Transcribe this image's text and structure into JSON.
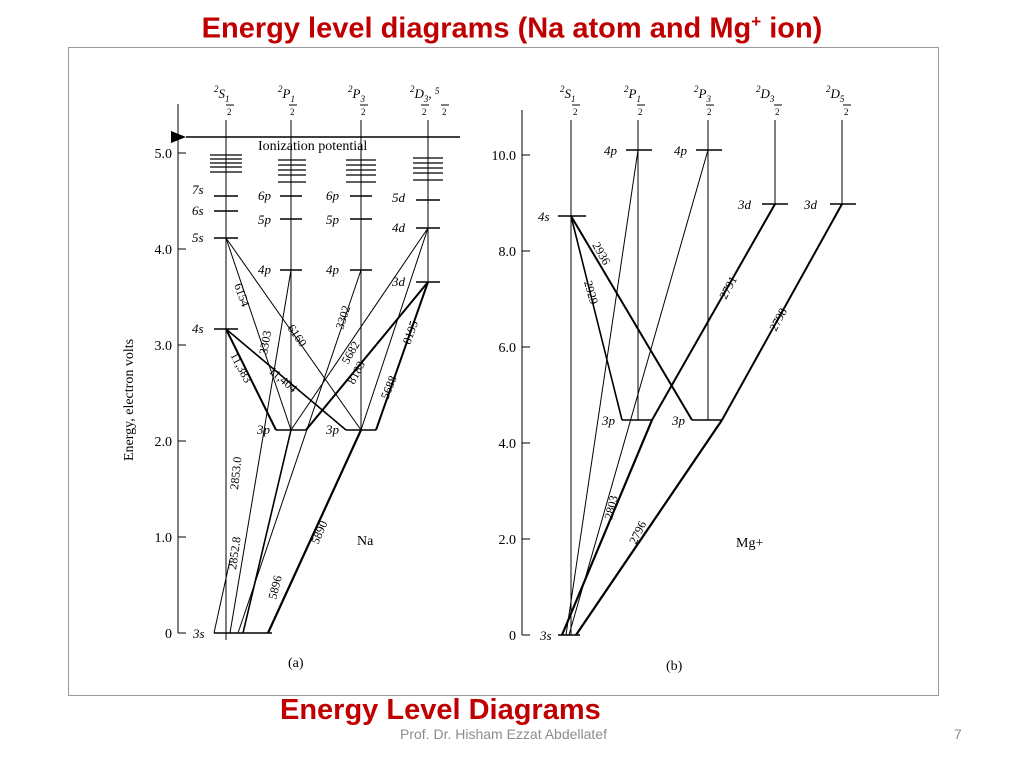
{
  "title": {
    "main": "Energy level diagrams (Na atom and Mg",
    "sup": "+",
    "tail": " ion)"
  },
  "caption": "Energy Level Diagrams",
  "footer": {
    "author": "Prof. Dr. Hisham Ezzat Abdellatef",
    "page": "7"
  },
  "na": {
    "label": "Na",
    "panel": "(a)",
    "axis_title": "Energy, electron volts",
    "ticks": [
      "0",
      "1.0",
      "2.0",
      "3.0",
      "4.0",
      "5.0"
    ],
    "ionization_label": "Ionization potential",
    "columns": [
      "2S1/2",
      "2P1/2",
      "2P3/2",
      "2D3/2,5/2"
    ],
    "levels": [
      {
        "label": "3s",
        "ev": 0.0
      },
      {
        "label": "4s",
        "ev": 3.19
      },
      {
        "label": "5s",
        "ev": 4.12
      },
      {
        "label": "6s",
        "ev": 4.51
      },
      {
        "label": "7s",
        "ev": 4.72
      },
      {
        "label": "3p",
        "ev": 2.1
      },
      {
        "label": "4p",
        "ev": 3.75
      },
      {
        "label": "5p",
        "ev": 4.34
      },
      {
        "label": "6p",
        "ev": 4.62
      },
      {
        "label": "3d",
        "ev": 3.62
      },
      {
        "label": "4d",
        "ev": 4.28
      },
      {
        "label": "5d",
        "ev": 4.59
      }
    ],
    "wavelengths": [
      "5890",
      "5896",
      "2852.8",
      "2853.0",
      "11,383",
      "11,404",
      "6154",
      "6160",
      "3303",
      "3302",
      "5682",
      "5688",
      "8183",
      "8195"
    ]
  },
  "mg": {
    "label": "Mg+",
    "panel": "(b)",
    "ticks": [
      "0",
      "2.0",
      "4.0",
      "6.0",
      "8.0",
      "10.0"
    ],
    "columns": [
      "2S1/2",
      "2P1/2",
      "2P3/2",
      "2D3/2",
      "2D5/2"
    ],
    "levels": [
      {
        "label": "3s",
        "ev": 0.0
      },
      {
        "label": "4s",
        "ev": 8.65
      },
      {
        "label": "3p",
        "ev": 4.43
      },
      {
        "label": "4p",
        "ev": 10.0
      },
      {
        "label": "3d",
        "ev": 8.86
      }
    ],
    "wavelengths": [
      "2803",
      "2796",
      "2936",
      "2929",
      "2791",
      "2798"
    ]
  }
}
